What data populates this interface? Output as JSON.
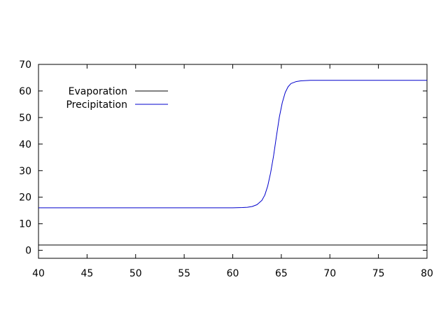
{
  "chart_data": {
    "type": "line",
    "title": "",
    "xlabel": "",
    "ylabel": "",
    "xlim": [
      40,
      80
    ],
    "ylim": [
      -3,
      70
    ],
    "x_ticks": [
      "40",
      "45",
      "50",
      "55",
      "60",
      "65",
      "70",
      "75",
      "80"
    ],
    "y_ticks": [
      "0",
      "10",
      "20",
      "30",
      "40",
      "50",
      "60",
      "70"
    ],
    "grid": false,
    "legend_position": "top-left",
    "series": [
      {
        "name": "Evaporation",
        "color": "#000000",
        "x": [
          40,
          45,
          50,
          55,
          60,
          65,
          70,
          75,
          80
        ],
        "y": [
          2,
          2,
          2,
          2,
          2,
          2,
          2,
          2,
          2
        ]
      },
      {
        "name": "Precipitation",
        "color": "#0000cc",
        "x": [
          40,
          45,
          50,
          55,
          60,
          61,
          61.5,
          62,
          62.5,
          63,
          63.3,
          63.6,
          63.9,
          64.2,
          64.5,
          64.8,
          65.1,
          65.4,
          65.7,
          66,
          66.5,
          67,
          67.5,
          68,
          70,
          75,
          80
        ],
        "y": [
          16,
          16,
          16,
          16,
          16,
          16.1,
          16.2,
          16.5,
          17.2,
          18.8,
          20.8,
          24.2,
          29.2,
          35.5,
          43,
          50.2,
          55.6,
          59.4,
          61.6,
          62.8,
          63.5,
          63.8,
          63.9,
          64,
          64,
          64,
          64
        ]
      }
    ]
  }
}
